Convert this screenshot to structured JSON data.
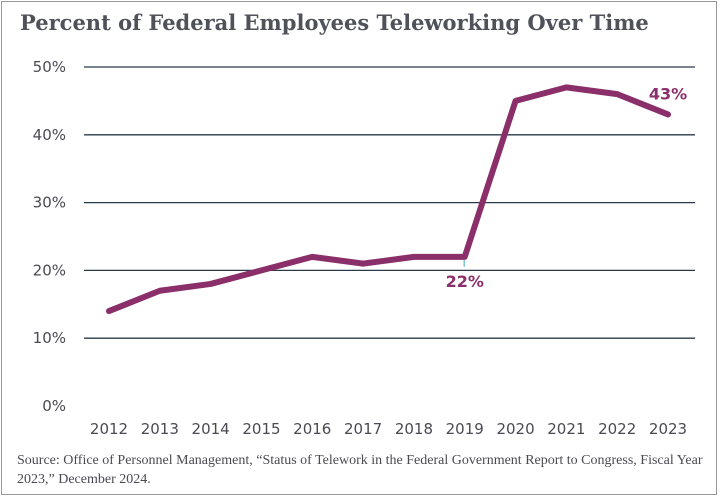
{
  "chart_data": {
    "type": "line",
    "title": "Percent of Federal Employees Teleworking Over Time",
    "x": [
      "2012",
      "2013",
      "2014",
      "2015",
      "2016",
      "2017",
      "2018",
      "2019",
      "2020",
      "2021",
      "2022",
      "2023"
    ],
    "series": [
      {
        "values": [
          14,
          17,
          18,
          20,
          22,
          21,
          22,
          22,
          45,
          47,
          46,
          43
        ]
      }
    ],
    "y_ticks": [
      "0%",
      "10%",
      "20%",
      "30%",
      "40%",
      "50%"
    ],
    "ylim": [
      0,
      50
    ],
    "grid": true,
    "line_color": "#8a2f6a",
    "grid_color": "#2a3a4a",
    "annotations": [
      {
        "x": "2019",
        "label": "22%"
      },
      {
        "x": "2023",
        "label": "43%"
      }
    ]
  },
  "source": "Source: Office of Personnel Management, “Status of Telework in the Federal Government Report to Congress, Fiscal Year 2023,” December 2024."
}
